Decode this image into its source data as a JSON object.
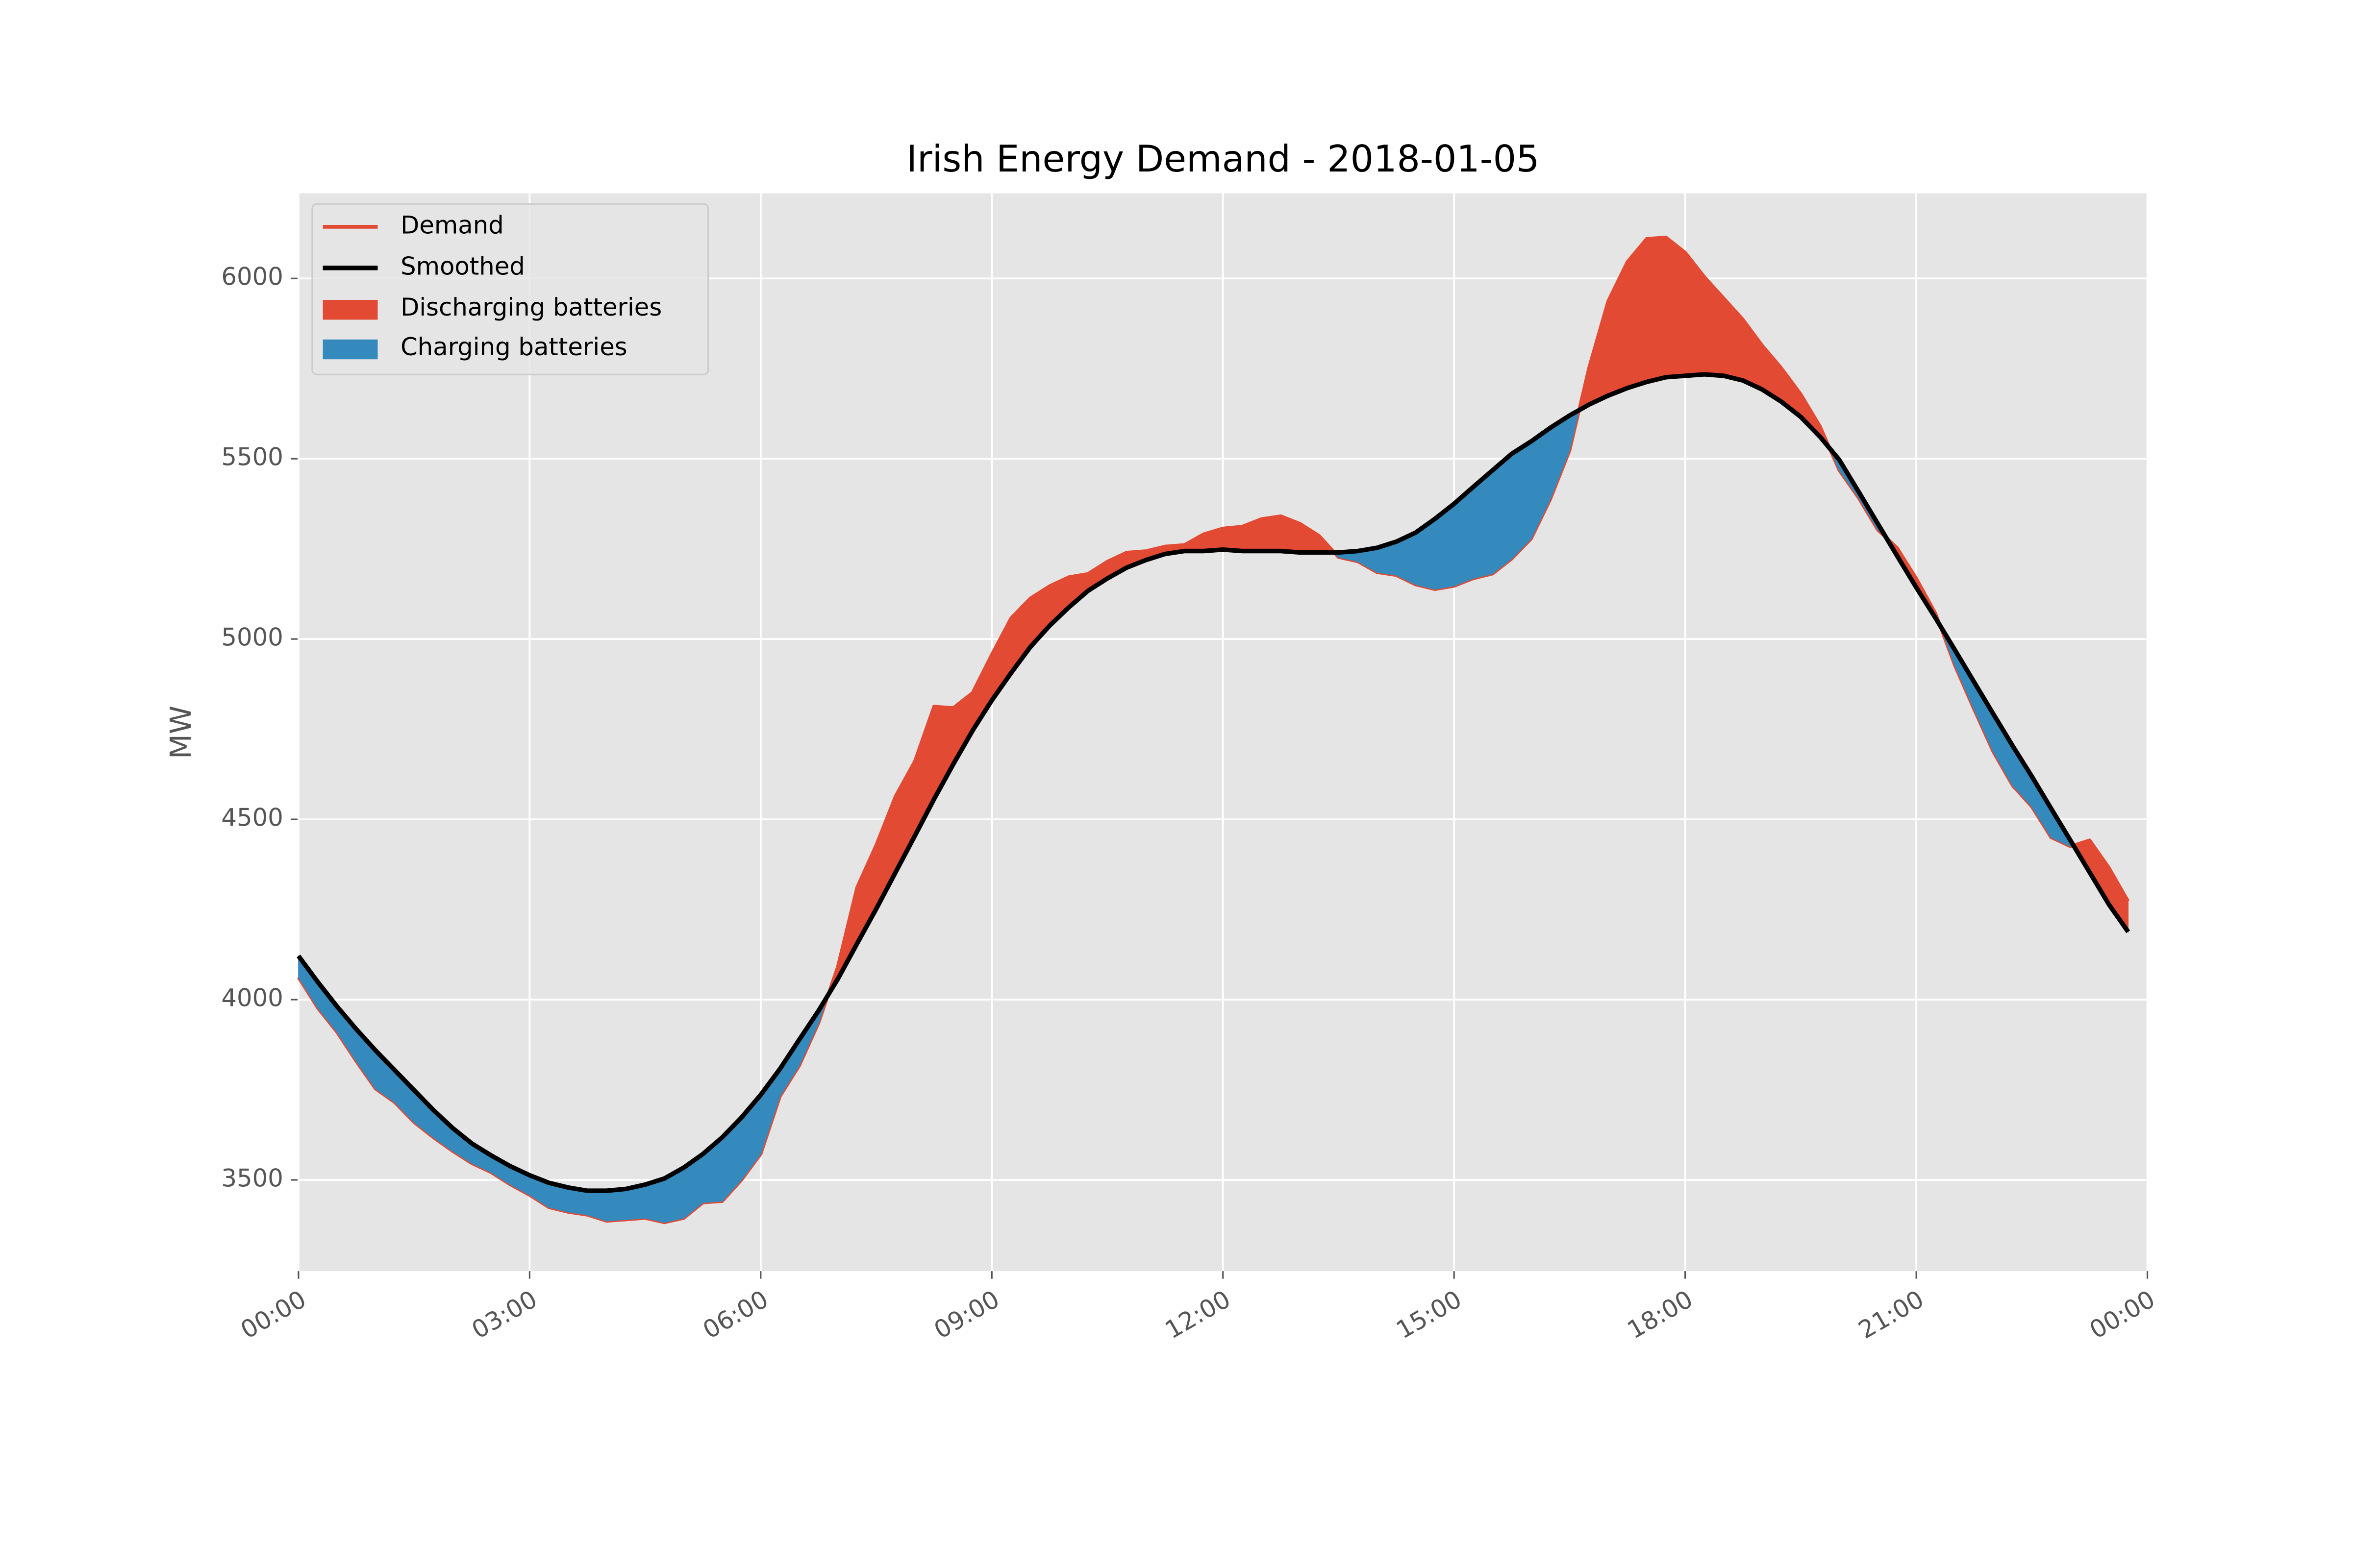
{
  "chart_data": {
    "type": "line",
    "title": "Irish Energy Demand - 2018-01-05",
    "ylabel": "MW",
    "x": [
      "00:00",
      "00:15",
      "00:30",
      "00:45",
      "01:00",
      "01:15",
      "01:30",
      "01:45",
      "02:00",
      "02:15",
      "02:30",
      "02:45",
      "03:00",
      "03:15",
      "03:30",
      "03:45",
      "04:00",
      "04:15",
      "04:30",
      "04:45",
      "05:00",
      "05:15",
      "05:30",
      "05:45",
      "06:00",
      "06:15",
      "06:30",
      "06:45",
      "07:00",
      "07:15",
      "07:30",
      "07:45",
      "08:00",
      "08:15",
      "08:30",
      "08:45",
      "09:00",
      "09:15",
      "09:30",
      "09:45",
      "10:00",
      "10:15",
      "10:30",
      "10:45",
      "11:00",
      "11:15",
      "11:30",
      "11:45",
      "12:00",
      "12:15",
      "12:30",
      "12:45",
      "13:00",
      "13:15",
      "13:30",
      "13:45",
      "14:00",
      "14:15",
      "14:30",
      "14:45",
      "15:00",
      "15:15",
      "15:30",
      "15:45",
      "16:00",
      "16:15",
      "16:30",
      "16:45",
      "17:00",
      "17:15",
      "17:30",
      "17:45",
      "18:00",
      "18:15",
      "18:30",
      "18:45",
      "19:00",
      "19:15",
      "19:30",
      "19:45",
      "20:00",
      "20:15",
      "20:30",
      "20:45",
      "21:00",
      "21:15",
      "21:30",
      "21:45",
      "22:00",
      "22:15",
      "22:30",
      "22:45",
      "23:00",
      "23:15",
      "23:30",
      "23:45"
    ],
    "series": [
      {
        "name": "Demand",
        "color": "#e24a33",
        "values": [
          4062,
          3977,
          3910,
          3829,
          3753,
          3715,
          3660,
          3618,
          3580,
          3546,
          3521,
          3487,
          3458,
          3424,
          3411,
          3403,
          3386,
          3390,
          3394,
          3382,
          3394,
          3437,
          3441,
          3500,
          3572,
          3732,
          3817,
          3935,
          4091,
          4311,
          4429,
          4564,
          4661,
          4813,
          4809,
          4851,
          4957,
          5058,
          5113,
          5147,
          5172,
          5181,
          5215,
          5240,
          5244,
          5257,
          5261,
          5291,
          5307,
          5312,
          5333,
          5341,
          5320,
          5286,
          5227,
          5215,
          5185,
          5177,
          5151,
          5138,
          5147,
          5168,
          5181,
          5223,
          5278,
          5388,
          5523,
          5751,
          5937,
          6046,
          6110,
          6114,
          6072,
          6004,
          5945,
          5886,
          5814,
          5751,
          5679,
          5590,
          5468,
          5392,
          5303,
          5253,
          5168,
          5071,
          4927,
          4805,
          4687,
          4594,
          4535,
          4450,
          4425,
          4442,
          4366,
          4273
        ]
      },
      {
        "name": "Smoothed",
        "color": "#000000",
        "values": [
          4121,
          4049,
          3981,
          3918,
          3859,
          3804,
          3749,
          3694,
          3644,
          3601,
          3568,
          3538,
          3513,
          3492,
          3479,
          3470,
          3470,
          3475,
          3487,
          3504,
          3534,
          3572,
          3618,
          3673,
          3736,
          3808,
          3889,
          3969,
          4057,
          4155,
          4252,
          4353,
          4454,
          4556,
          4653,
          4746,
          4830,
          4906,
          4978,
          5037,
          5088,
          5134,
          5168,
          5198,
          5219,
          5236,
          5244,
          5244,
          5248,
          5244,
          5244,
          5244,
          5240,
          5240,
          5240,
          5244,
          5253,
          5270,
          5295,
          5333,
          5375,
          5422,
          5468,
          5514,
          5548,
          5586,
          5620,
          5650,
          5675,
          5696,
          5713,
          5726,
          5730,
          5734,
          5730,
          5717,
          5692,
          5658,
          5616,
          5561,
          5497,
          5409,
          5320,
          5231,
          5143,
          5058,
          4970,
          4881,
          4792,
          4704,
          4619,
          4530,
          4442,
          4353,
          4264,
          4188
        ]
      }
    ],
    "fills": [
      {
        "name": "Discharging batteries",
        "color": "#e24a33"
      },
      {
        "name": "Charging batteries",
        "color": "#348abd"
      }
    ],
    "xlim": [
      0,
      1440
    ],
    "xticks": [
      {
        "value": 0,
        "label": "00:00"
      },
      {
        "value": 180,
        "label": "03:00"
      },
      {
        "value": 360,
        "label": "06:00"
      },
      {
        "value": 540,
        "label": "09:00"
      },
      {
        "value": 720,
        "label": "12:00"
      },
      {
        "value": 900,
        "label": "15:00"
      },
      {
        "value": 1080,
        "label": "18:00"
      },
      {
        "value": 1260,
        "label": "21:00"
      },
      {
        "value": 1440,
        "label": "00:00"
      }
    ],
    "ylim": [
      3247,
      6236
    ],
    "yticks": [
      3500,
      4000,
      4500,
      5000,
      5500,
      6000
    ],
    "grid": true,
    "legend": "upper left"
  }
}
